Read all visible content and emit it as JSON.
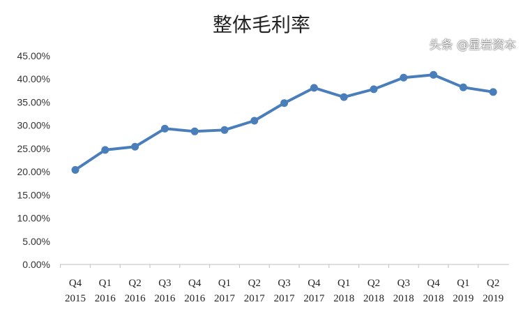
{
  "chart_data": {
    "type": "line",
    "title": "整体毛利率",
    "xlabel": "",
    "ylabel": "",
    "categories": [
      [
        "Q4",
        "2015"
      ],
      [
        "Q1",
        "2016"
      ],
      [
        "Q2",
        "2016"
      ],
      [
        "Q3",
        "2016"
      ],
      [
        "Q4",
        "2016"
      ],
      [
        "Q1",
        "2017"
      ],
      [
        "Q2",
        "2017"
      ],
      [
        "Q3",
        "2017"
      ],
      [
        "Q4",
        "2017"
      ],
      [
        "Q1",
        "2018"
      ],
      [
        "Q2",
        "2018"
      ],
      [
        "Q3",
        "2018"
      ],
      [
        "Q4",
        "2018"
      ],
      [
        "Q1",
        "2019"
      ],
      [
        "Q2",
        "2019"
      ]
    ],
    "series": [
      {
        "values": [
          20.4,
          24.7,
          25.4,
          29.3,
          28.7,
          29.0,
          31.0,
          34.8,
          38.1,
          36.1,
          37.8,
          40.3,
          40.9,
          38.2,
          37.2
        ],
        "color": "#4a7ebb"
      }
    ],
    "ylim": [
      0,
      45
    ],
    "yticks": [
      "0.00%",
      "5.00%",
      "10.00%",
      "15.00%",
      "20.00%",
      "25.00%",
      "30.00%",
      "35.00%",
      "40.00%",
      "45.00%"
    ],
    "grid": false,
    "legend": "none",
    "markers": true
  },
  "watermark": "头条 @星岩资本"
}
